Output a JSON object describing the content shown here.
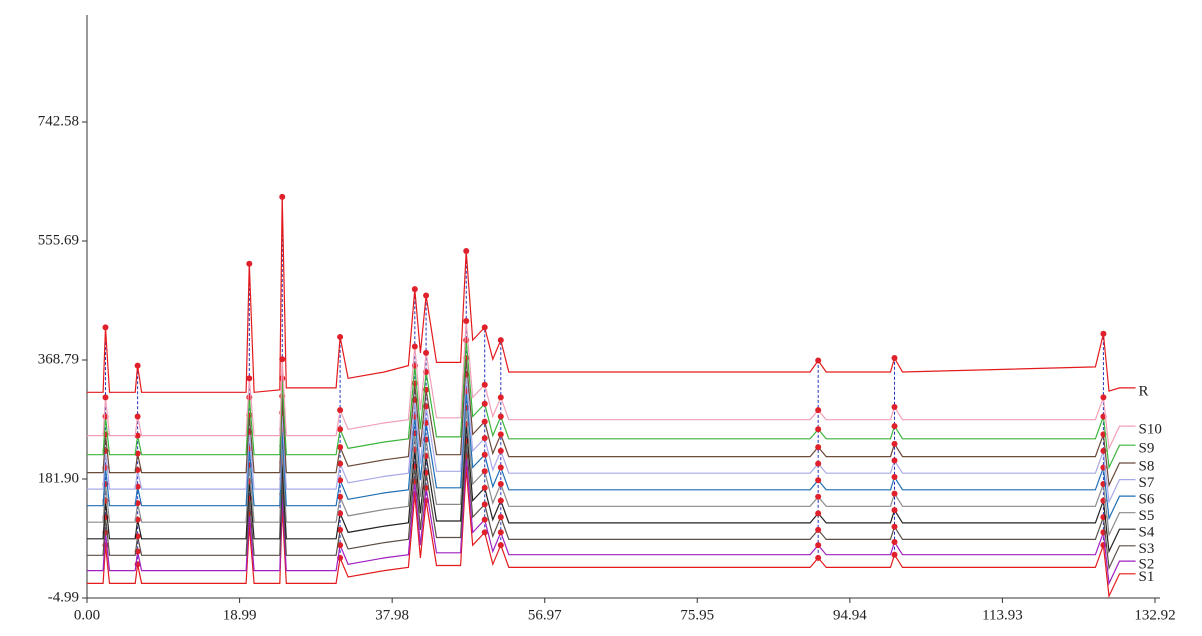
{
  "chart_data": {
    "type": "line",
    "x": [
      0,
      2,
      2.3,
      2.8,
      6,
      6.3,
      6.8,
      19.8,
      20.2,
      20.8,
      24,
      24.3,
      24.8,
      31,
      31.5,
      32.5,
      37,
      40,
      40.8,
      41.5,
      42.2,
      43.5,
      46.5,
      47.2,
      48,
      49.5,
      50.5,
      51.5,
      52.5,
      56,
      90,
      91,
      92,
      100,
      100.5,
      101.5,
      125.5,
      126.5,
      127.2,
      128.5,
      130.5
    ],
    "series": [
      {
        "name": "S1",
        "color": "#e31a1c",
        "values": [
          18,
          18,
          78,
          18,
          18,
          48,
          18,
          18,
          108,
          18,
          18,
          138,
          18,
          18,
          58,
          28,
          38,
          43,
          158,
          58,
          148,
          46,
          46,
          198,
          78,
          98,
          48,
          78,
          43,
          43,
          43,
          58,
          43,
          43,
          63,
          43,
          43,
          78,
          -2,
          33,
          33
        ]
      },
      {
        "name": "S2",
        "color": "#a020c0",
        "values": [
          38,
          38,
          98,
          38,
          38,
          68,
          38,
          38,
          128,
          38,
          38,
          158,
          38,
          38,
          78,
          48,
          58,
          63,
          178,
          78,
          168,
          66,
          66,
          218,
          98,
          118,
          68,
          98,
          63,
          63,
          63,
          78,
          63,
          63,
          83,
          63,
          63,
          98,
          18,
          53,
          53
        ]
      },
      {
        "name": "S3",
        "color": "#5a5048",
        "values": [
          62,
          62,
          122,
          62,
          62,
          92,
          62,
          62,
          152,
          62,
          62,
          182,
          62,
          62,
          102,
          72,
          82,
          87,
          202,
          102,
          192,
          90,
          90,
          242,
          122,
          142,
          92,
          122,
          87,
          87,
          87,
          102,
          87,
          87,
          107,
          87,
          87,
          122,
          42,
          77,
          77
        ]
      },
      {
        "name": "S4",
        "color": "#222222",
        "values": [
          88,
          88,
          148,
          88,
          88,
          118,
          88,
          88,
          178,
          88,
          88,
          208,
          88,
          88,
          128,
          98,
          108,
          113,
          228,
          128,
          218,
          116,
          116,
          268,
          148,
          168,
          118,
          148,
          113,
          113,
          113,
          128,
          113,
          113,
          133,
          113,
          113,
          148,
          68,
          103,
          103
        ]
      },
      {
        "name": "S5",
        "color": "#8a8a8a",
        "values": [
          114,
          114,
          174,
          114,
          114,
          144,
          114,
          114,
          204,
          114,
          114,
          234,
          114,
          114,
          154,
          124,
          134,
          139,
          254,
          154,
          244,
          142,
          142,
          294,
          174,
          194,
          144,
          174,
          139,
          139,
          139,
          154,
          139,
          139,
          159,
          139,
          139,
          174,
          94,
          129,
          129
        ]
      },
      {
        "name": "S6",
        "color": "#1f6fb5",
        "values": [
          140,
          140,
          200,
          140,
          140,
          170,
          140,
          140,
          230,
          140,
          140,
          260,
          140,
          140,
          180,
          150,
          160,
          165,
          280,
          180,
          270,
          168,
          168,
          320,
          200,
          220,
          170,
          200,
          165,
          165,
          165,
          180,
          165,
          165,
          185,
          165,
          165,
          200,
          120,
          155,
          155
        ]
      },
      {
        "name": "S7",
        "color": "#a8a8e8",
        "values": [
          166,
          166,
          226,
          166,
          166,
          196,
          166,
          166,
          256,
          166,
          166,
          286,
          166,
          166,
          206,
          176,
          186,
          191,
          306,
          206,
          296,
          194,
          194,
          346,
          226,
          246,
          196,
          226,
          191,
          191,
          191,
          206,
          191,
          191,
          211,
          191,
          191,
          226,
          146,
          181,
          181
        ]
      },
      {
        "name": "S8",
        "color": "#6b4a3a",
        "values": [
          192,
          192,
          252,
          192,
          192,
          222,
          192,
          192,
          282,
          192,
          192,
          312,
          192,
          192,
          232,
          202,
          212,
          217,
          332,
          232,
          322,
          220,
          220,
          372,
          252,
          272,
          222,
          252,
          217,
          217,
          217,
          232,
          217,
          217,
          237,
          217,
          217,
          252,
          172,
          207,
          207
        ]
      },
      {
        "name": "S9",
        "color": "#3cb43c",
        "values": [
          220,
          220,
          280,
          220,
          220,
          250,
          220,
          220,
          310,
          220,
          220,
          340,
          220,
          220,
          260,
          230,
          240,
          245,
          360,
          260,
          350,
          248,
          248,
          400,
          280,
          300,
          250,
          280,
          245,
          245,
          245,
          260,
          245,
          245,
          265,
          245,
          245,
          280,
          200,
          235,
          235
        ]
      },
      {
        "name": "S10",
        "color": "#f0a0b8",
        "values": [
          250,
          250,
          310,
          250,
          250,
          280,
          250,
          250,
          340,
          250,
          250,
          370,
          250,
          250,
          290,
          260,
          270,
          275,
          390,
          290,
          380,
          278,
          278,
          430,
          310,
          330,
          280,
          310,
          275,
          275,
          275,
          290,
          275,
          275,
          295,
          275,
          275,
          310,
          230,
          265,
          265
        ]
      },
      {
        "name": "R",
        "color": "#e31a1c",
        "values": [
          318,
          318,
          420,
          318,
          318,
          360,
          318,
          318,
          520,
          318,
          322,
          625,
          325,
          325,
          405,
          340,
          350,
          360,
          480,
          380,
          470,
          365,
          365,
          540,
          400,
          420,
          370,
          400,
          350,
          350,
          350,
          368,
          350,
          350,
          372,
          350,
          358,
          410,
          320,
          325,
          325
        ]
      }
    ],
    "xlim": [
      0,
      132.92
    ],
    "xticks": [
      {
        "value": 0,
        "label": "0.00"
      },
      18.99,
      37.98,
      56.97,
      75.95,
      94.94,
      113.93,
      132.92
    ],
    "ylim": [
      -4.99,
      910.6
    ],
    "yticks": [
      -4.99,
      {
        "value": 181.9,
        "label": "181.90"
      },
      368.79,
      555.69,
      742.58
    ]
  }
}
